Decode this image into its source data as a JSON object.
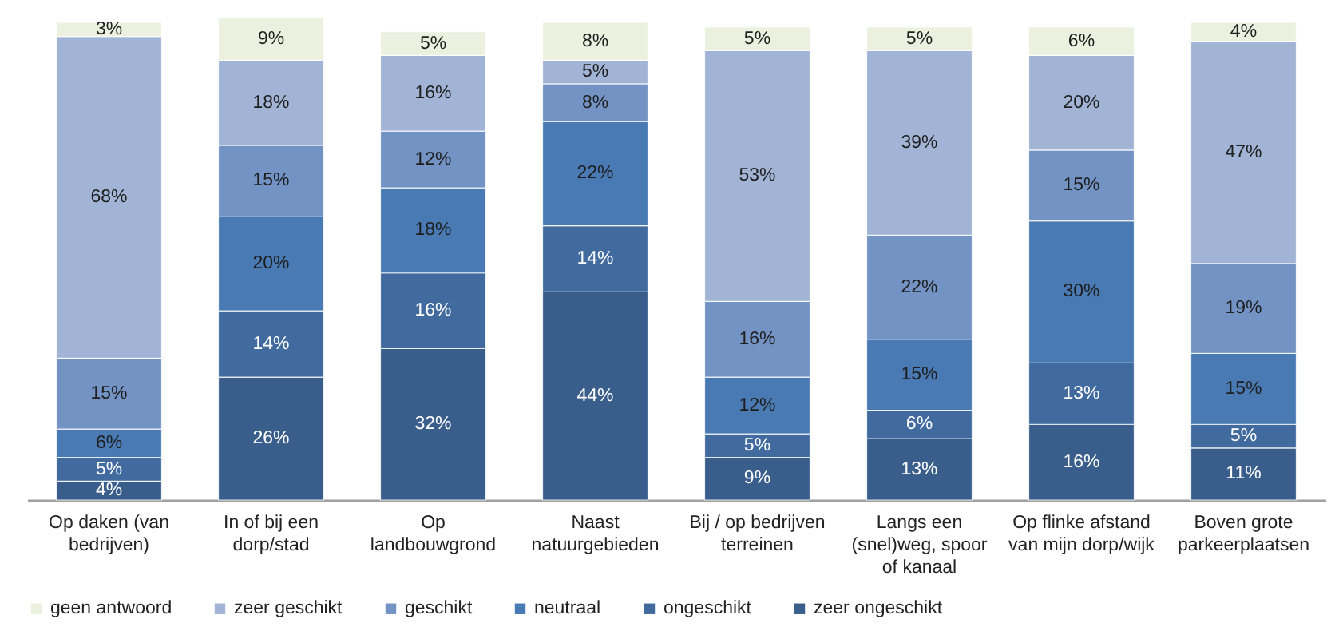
{
  "chart_data": {
    "type": "bar",
    "stacked": true,
    "categories": [
      "Op daken (van bedrijven)",
      "In of bij een dorp/stad",
      "Op landbouwgrond",
      "Naast natuurgebieden",
      "Bij / op bedrijven terreinen",
      "Langs een (snel)weg, spoor of kanaal",
      "Op flinke afstand van mijn dorp/wijk",
      "Boven grote parkeerplaatsen"
    ],
    "series": [
      {
        "name": "zeer ongeschikt",
        "color": "#3a5e8b",
        "values": [
          4,
          26,
          32,
          44,
          9,
          13,
          16,
          11
        ],
        "value_labels": [
          "4%",
          "26%",
          "32%",
          "44%",
          "9%",
          "13%",
          "16%",
          "11%"
        ]
      },
      {
        "name": "ongeschikt",
        "color": "#416b9e",
        "values": [
          5,
          14,
          16,
          14,
          5,
          6,
          13,
          5
        ],
        "value_labels": [
          "5%",
          "14%",
          "16%",
          "14%",
          "5%",
          "6%",
          "13%",
          "5%"
        ]
      },
      {
        "name": "neutraal",
        "color": "#4a7ab4",
        "values": [
          6,
          20,
          18,
          22,
          12,
          15,
          30,
          15
        ],
        "value_labels": [
          "6%",
          "20%",
          "18%",
          "22%",
          "12%",
          "15%",
          "30%",
          "15%"
        ]
      },
      {
        "name": "geschikt",
        "color": "#7393c5",
        "values": [
          15,
          15,
          12,
          8,
          16,
          22,
          15,
          19
        ],
        "value_labels": [
          "15%",
          "15%",
          "12%",
          "8%",
          "16%",
          "22%",
          "15%",
          "19%"
        ]
      },
      {
        "name": "zeer geschikt",
        "color": "#a2b4d5",
        "values": [
          68,
          18,
          16,
          5,
          53,
          39,
          20,
          47
        ],
        "value_labels": [
          "68%",
          "18%",
          "16%",
          "5%",
          "53%",
          "39%",
          "20%",
          "47%"
        ]
      },
      {
        "name": "geen antwoord",
        "color": "#ecf1df",
        "values": [
          3,
          9,
          5,
          8,
          5,
          5,
          6,
          4
        ],
        "value_labels": [
          "3%",
          "9%",
          "5%",
          "8%",
          "5%",
          "5%",
          "6%",
          "4%"
        ]
      }
    ],
    "ylim": [
      0,
      102
    ],
    "tick_labels": "x",
    "grid": false,
    "legend": "bottom"
  }
}
